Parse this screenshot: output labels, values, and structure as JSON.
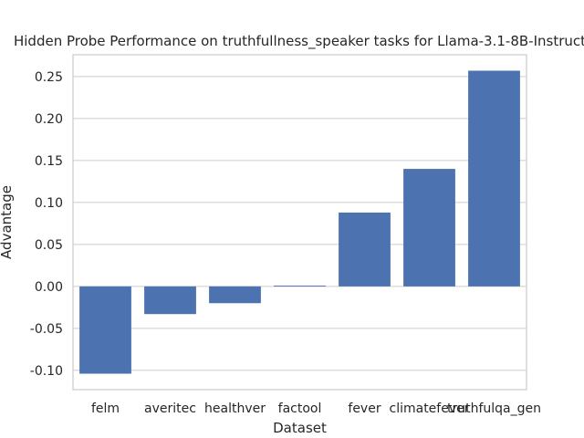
{
  "chart_data": {
    "type": "bar",
    "title": "Hidden Probe Performance on truthfullness_speaker tasks for Llama-3.1-8B-Instruct",
    "xlabel": "Dataset",
    "ylabel": "Advantage",
    "categories": [
      "felm",
      "averitec",
      "healthver",
      "factool",
      "fever",
      "climatefever",
      "truthfulqa_gen"
    ],
    "values": [
      -0.104,
      -0.033,
      -0.02,
      0.001,
      0.088,
      0.14,
      0.257
    ],
    "ylim": [
      -0.123,
      0.276
    ],
    "yticks": [
      "-0.10",
      "-0.05",
      "0.00",
      "0.05",
      "0.10",
      "0.15",
      "0.20",
      "0.25"
    ],
    "grid": true,
    "bar_color": "#4c72b0",
    "grid_color": "#cccccc",
    "legend": "none"
  }
}
